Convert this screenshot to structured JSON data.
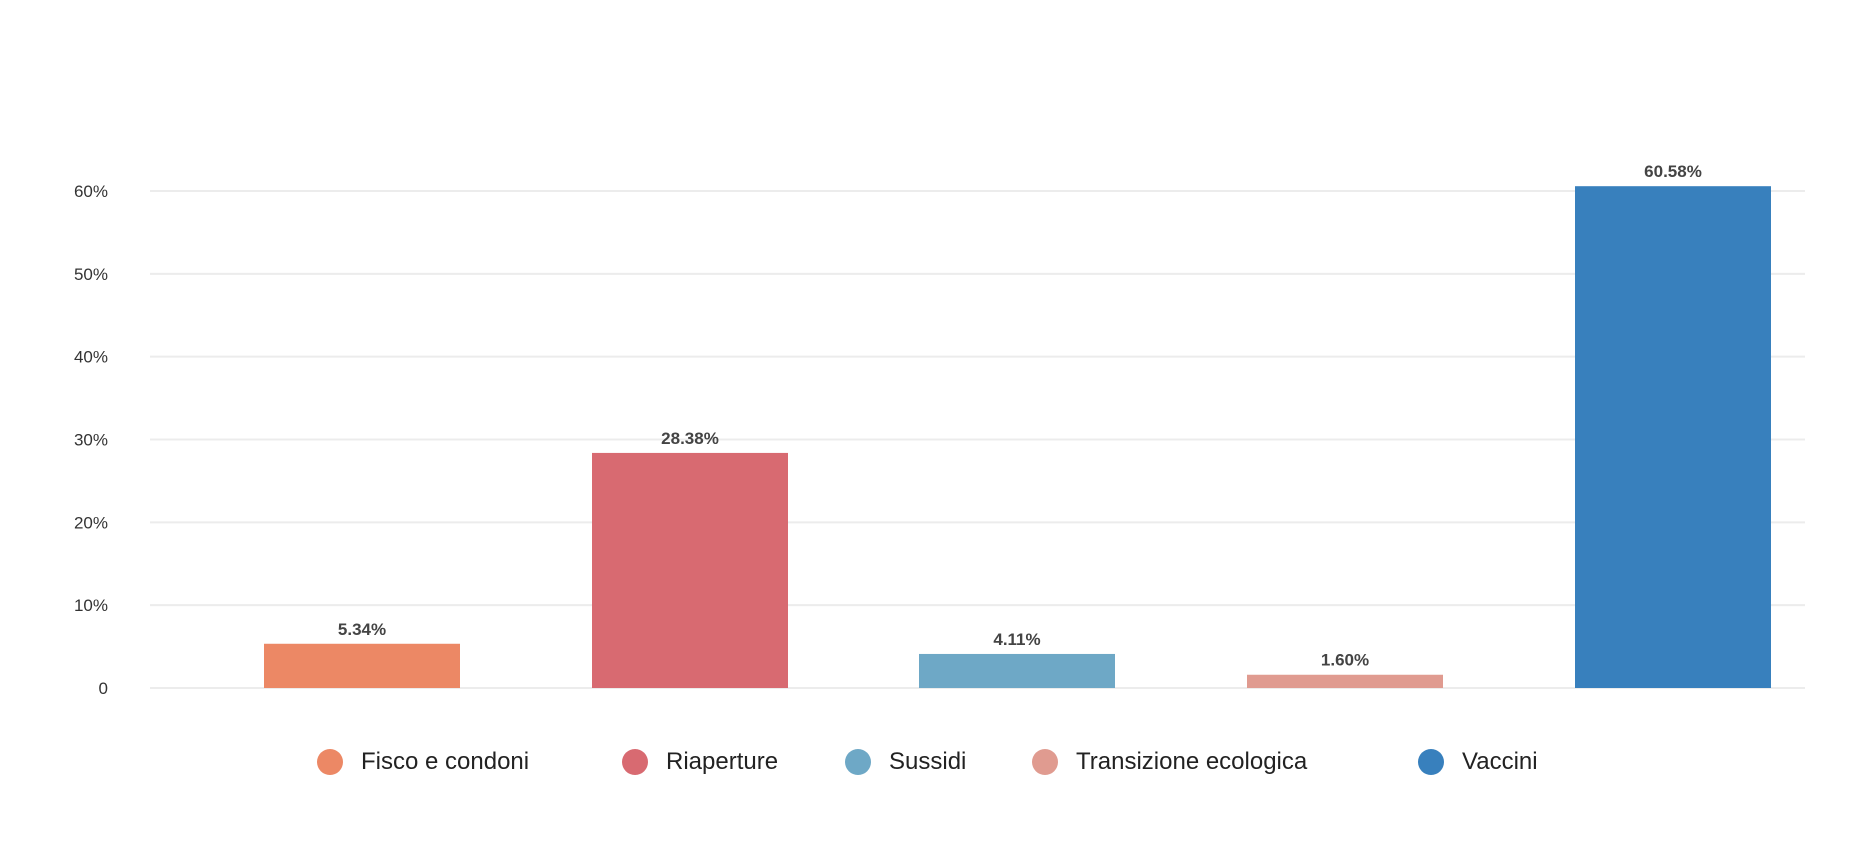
{
  "chart_data": {
    "type": "bar",
    "categories": [
      "Fisco e condoni",
      "Riaperture",
      "Sussidi",
      "Transizione ecologica",
      "Vaccini"
    ],
    "values": [
      5.34,
      28.38,
      4.11,
      1.6,
      60.58
    ],
    "value_labels": [
      "5.34%",
      "28.38%",
      "4.11%",
      "1.60%",
      "60.58%"
    ],
    "colors": [
      "#ec8865",
      "#d86a71",
      "#6ea8c6",
      "#e09b90",
      "#3880bd"
    ],
    "y_ticks": [
      0,
      10,
      20,
      30,
      40,
      50,
      60
    ],
    "y_tick_labels": [
      "0",
      "10%",
      "20%",
      "30%",
      "40%",
      "50%",
      "60%"
    ],
    "ylim": [
      0,
      60
    ],
    "grid": true,
    "legend_position": "bottom",
    "title": "",
    "xlabel": "",
    "ylabel": ""
  }
}
